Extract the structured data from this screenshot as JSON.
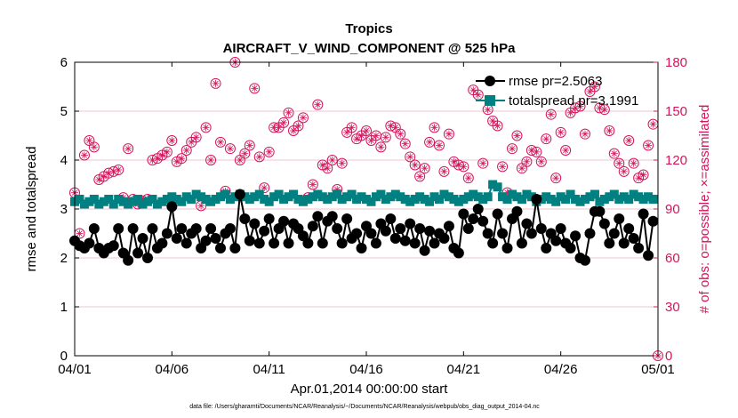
{
  "chart_data": {
    "type": "line",
    "title": "Tropics",
    "subtitle": "AIRCRAFT_V_WIND_COMPONENT @ 525 hPa",
    "xlabel": "Apr.01,2014 00:00:00 start",
    "ylabel": "rmse and totalspread",
    "y2label": "# of obs: o=possible; ×=assimilated",
    "footnote": "data file: /Users/gharamti/Documents/NCAR/Reanalysis/~/Documents/NCAR/Reanalysis/webpub/obs_diag_output_2014-04.nc",
    "xlim": [
      0,
      30
    ],
    "ylim": [
      0,
      6
    ],
    "y2lim": [
      0,
      180
    ],
    "x_ticks": [
      0,
      5,
      10,
      15,
      20,
      25,
      30
    ],
    "x_tick_labels": [
      "04/01",
      "04/06",
      "04/11",
      "04/16",
      "04/21",
      "04/26",
      "05/01"
    ],
    "y_ticks": [
      0,
      1,
      2,
      3,
      4,
      5,
      6
    ],
    "y_tick_labels": [
      "0",
      "1",
      "2",
      "3",
      "4",
      "5",
      "6"
    ],
    "y2_ticks": [
      0,
      30,
      60,
      90,
      120,
      150,
      180
    ],
    "y2_tick_labels": [
      "0",
      "30",
      "60",
      "90",
      "120",
      "150",
      "180"
    ],
    "colors": {
      "rmse": "#000000",
      "totalspread": "#008080",
      "obs": "#d4145a",
      "grid": "#e6b3c4"
    },
    "legend": {
      "placement": "top-right",
      "entries": [
        "rmse pr=2.5063",
        "totalspread pr=3.1991"
      ]
    },
    "series": [
      {
        "name": "rmse pr=2.5063",
        "x": [
          0.0,
          0.25,
          0.5,
          0.75,
          1.0,
          1.25,
          1.5,
          1.75,
          2.0,
          2.25,
          2.5,
          2.75,
          3.0,
          3.25,
          3.5,
          3.75,
          4.0,
          4.25,
          4.5,
          4.75,
          5.0,
          5.25,
          5.5,
          5.75,
          6.0,
          6.25,
          6.5,
          6.75,
          7.0,
          7.25,
          7.5,
          7.75,
          8.0,
          8.25,
          8.5,
          8.75,
          9.0,
          9.25,
          9.5,
          9.75,
          10.0,
          10.25,
          10.5,
          10.75,
          11.0,
          11.25,
          11.5,
          11.75,
          12.0,
          12.25,
          12.5,
          12.75,
          13.0,
          13.25,
          13.5,
          13.75,
          14.0,
          14.25,
          14.5,
          14.75,
          15.0,
          15.25,
          15.5,
          15.75,
          16.0,
          16.25,
          16.5,
          16.75,
          17.0,
          17.25,
          17.5,
          17.75,
          18.0,
          18.25,
          18.5,
          18.75,
          19.0,
          19.25,
          19.5,
          19.75,
          20.0,
          20.25,
          20.5,
          20.75,
          21.0,
          21.25,
          21.5,
          21.75,
          22.0,
          22.25,
          22.5,
          22.75,
          23.0,
          23.25,
          23.5,
          23.75,
          24.0,
          24.25,
          24.5,
          24.75,
          25.0,
          25.25,
          25.5,
          25.75,
          26.0,
          26.25,
          26.5,
          26.75,
          27.0,
          27.25,
          27.5,
          27.75,
          28.0,
          28.25,
          28.5,
          28.75,
          29.0,
          29.25,
          29.5,
          29.75
        ],
        "values": [
          2.35,
          2.25,
          2.2,
          2.3,
          2.6,
          2.2,
          2.1,
          2.2,
          2.25,
          2.6,
          2.1,
          1.95,
          2.6,
          2.1,
          2.4,
          2.0,
          2.6,
          2.2,
          2.3,
          2.5,
          3.05,
          2.4,
          2.6,
          2.3,
          2.5,
          2.6,
          2.2,
          2.35,
          2.6,
          2.4,
          2.2,
          2.5,
          2.6,
          2.2,
          3.3,
          2.8,
          2.35,
          2.7,
          2.3,
          2.55,
          2.8,
          2.3,
          2.6,
          2.75,
          2.3,
          2.7,
          2.6,
          2.45,
          2.3,
          2.65,
          2.85,
          2.3,
          2.75,
          2.85,
          2.6,
          2.3,
          2.8,
          2.4,
          2.5,
          2.2,
          2.65,
          2.5,
          2.3,
          2.7,
          2.55,
          2.8,
          2.4,
          2.6,
          2.35,
          2.7,
          2.3,
          2.6,
          2.15,
          2.55,
          2.3,
          2.5,
          2.4,
          2.65,
          2.2,
          2.1,
          2.9,
          2.6,
          2.8,
          3.0,
          2.75,
          2.5,
          2.3,
          2.9,
          2.5,
          2.2,
          2.8,
          2.95,
          2.3,
          2.7,
          2.5,
          3.2,
          2.6,
          2.2,
          2.5,
          2.35,
          2.6,
          2.3,
          2.2,
          2.45,
          2.0,
          1.95,
          2.5,
          2.95,
          2.95,
          2.7,
          2.3,
          2.5,
          2.8,
          2.3,
          2.6,
          2.4,
          2.2,
          2.9,
          2.05,
          2.75
        ]
      },
      {
        "name": "totalspread pr=3.1991",
        "x": [
          0.0,
          0.25,
          0.5,
          0.75,
          1.0,
          1.25,
          1.5,
          1.75,
          2.0,
          2.25,
          2.5,
          2.75,
          3.0,
          3.25,
          3.5,
          3.75,
          4.0,
          4.25,
          4.5,
          4.75,
          5.0,
          5.25,
          5.5,
          5.75,
          6.0,
          6.25,
          6.5,
          6.75,
          7.0,
          7.25,
          7.5,
          7.75,
          8.0,
          8.25,
          8.5,
          8.75,
          9.0,
          9.25,
          9.5,
          9.75,
          10.0,
          10.25,
          10.5,
          10.75,
          11.0,
          11.25,
          11.5,
          11.75,
          12.0,
          12.25,
          12.5,
          12.75,
          13.0,
          13.25,
          13.5,
          13.75,
          14.0,
          14.25,
          14.5,
          14.75,
          15.0,
          15.25,
          15.5,
          15.75,
          16.0,
          16.25,
          16.5,
          16.75,
          17.0,
          17.25,
          17.5,
          17.75,
          18.0,
          18.25,
          18.5,
          18.75,
          19.0,
          19.25,
          19.5,
          19.75,
          20.0,
          20.25,
          20.5,
          20.75,
          21.0,
          21.25,
          21.5,
          21.75,
          22.0,
          22.25,
          22.5,
          22.75,
          23.0,
          23.25,
          23.5,
          23.75,
          24.0,
          24.25,
          24.5,
          24.75,
          25.0,
          25.25,
          25.5,
          25.75,
          26.0,
          26.25,
          26.5,
          26.75,
          27.0,
          27.25,
          27.5,
          27.75,
          28.0,
          28.25,
          28.5,
          28.75,
          29.0,
          29.25,
          29.5,
          29.75
        ],
        "values": [
          3.15,
          3.2,
          3.1,
          3.15,
          3.2,
          3.1,
          3.15,
          3.2,
          3.1,
          3.2,
          3.15,
          3.1,
          3.15,
          3.2,
          3.1,
          3.15,
          3.2,
          3.1,
          3.15,
          3.2,
          3.25,
          3.2,
          3.15,
          3.25,
          3.2,
          3.3,
          3.25,
          3.2,
          3.15,
          3.2,
          3.25,
          3.3,
          3.2,
          3.25,
          3.3,
          3.25,
          3.2,
          3.25,
          3.3,
          3.2,
          3.15,
          3.25,
          3.3,
          3.2,
          3.25,
          3.3,
          3.2,
          3.15,
          3.2,
          3.25,
          3.3,
          3.25,
          3.2,
          3.25,
          3.3,
          3.2,
          3.25,
          3.3,
          3.2,
          3.25,
          3.2,
          3.15,
          3.25,
          3.3,
          3.2,
          3.25,
          3.3,
          3.25,
          3.2,
          3.15,
          3.2,
          3.25,
          3.2,
          3.15,
          3.25,
          3.2,
          3.3,
          3.25,
          3.2,
          3.15,
          3.2,
          3.25,
          3.3,
          3.25,
          3.2,
          3.25,
          3.5,
          3.45,
          3.25,
          3.2,
          3.3,
          3.25,
          3.2,
          3.3,
          3.25,
          3.15,
          3.2,
          3.25,
          3.2,
          3.15,
          3.25,
          3.2,
          3.3,
          3.2,
          3.15,
          3.2,
          3.25,
          3.3,
          3.15,
          3.2,
          3.25,
          3.3,
          3.2,
          3.25,
          3.2,
          3.3,
          3.25,
          3.2,
          3.25,
          3.2
        ]
      },
      {
        "name": "# of obs possible",
        "axis": "right",
        "x": [
          0.0,
          0.25,
          0.5,
          0.75,
          1.0,
          1.25,
          1.5,
          1.75,
          2.0,
          2.25,
          2.5,
          2.75,
          3.0,
          3.25,
          3.5,
          3.75,
          4.0,
          4.25,
          4.5,
          4.75,
          5.0,
          5.25,
          5.5,
          5.75,
          6.0,
          6.25,
          6.5,
          6.75,
          7.0,
          7.25,
          7.5,
          7.75,
          8.0,
          8.25,
          8.5,
          8.75,
          9.0,
          9.25,
          9.5,
          9.75,
          10.0,
          10.25,
          10.5,
          10.75,
          11.0,
          11.25,
          11.5,
          11.75,
          12.0,
          12.25,
          12.5,
          12.75,
          13.0,
          13.25,
          13.5,
          13.75,
          14.0,
          14.25,
          14.5,
          14.75,
          15.0,
          15.25,
          15.5,
          15.75,
          16.0,
          16.25,
          16.5,
          16.75,
          17.0,
          17.25,
          17.5,
          17.75,
          18.0,
          18.25,
          18.5,
          18.75,
          19.0,
          19.25,
          19.5,
          19.75,
          20.0,
          20.25,
          20.5,
          20.75,
          21.0,
          21.25,
          21.5,
          21.75,
          22.0,
          22.25,
          22.5,
          22.75,
          23.0,
          23.25,
          23.5,
          23.75,
          24.0,
          24.25,
          24.5,
          24.75,
          25.0,
          25.25,
          25.5,
          25.75,
          26.0,
          26.25,
          26.5,
          26.75,
          27.0,
          27.25,
          27.5,
          27.75,
          28.0,
          28.25,
          28.5,
          28.75,
          29.0,
          29.25,
          29.5,
          29.75,
          30.0
        ],
        "values": [
          100,
          75,
          123,
          132,
          128,
          108,
          110,
          112,
          113,
          114,
          97,
          127,
          96,
          93,
          95,
          96,
          120,
          121,
          123,
          125,
          132,
          119,
          121,
          126,
          131,
          134,
          92,
          140,
          120,
          167,
          131,
          101,
          127,
          180,
          120,
          124,
          129,
          164,
          122,
          103,
          125,
          140,
          140,
          143,
          149,
          138,
          141,
          146,
          97,
          105,
          154,
          117,
          115,
          120,
          102,
          118,
          137,
          140,
          133,
          135,
          138,
          132,
          135,
          128,
          134,
          141,
          140,
          136,
          130,
          122,
          117,
          110,
          115,
          131,
          140,
          129,
          113,
          136,
          119,
          117,
          116,
          109,
          163,
          160,
          118,
          151,
          144,
          141,
          116,
          100,
          127,
          135,
          115,
          119,
          126,
          125,
          119,
          133,
          148,
          109,
          137,
          126,
          149,
          152,
          153,
          136,
          162,
          165,
          152,
          151,
          138,
          124,
          118,
          113,
          132,
          118,
          109,
          111,
          129,
          142,
          0
        ]
      }
    ]
  }
}
